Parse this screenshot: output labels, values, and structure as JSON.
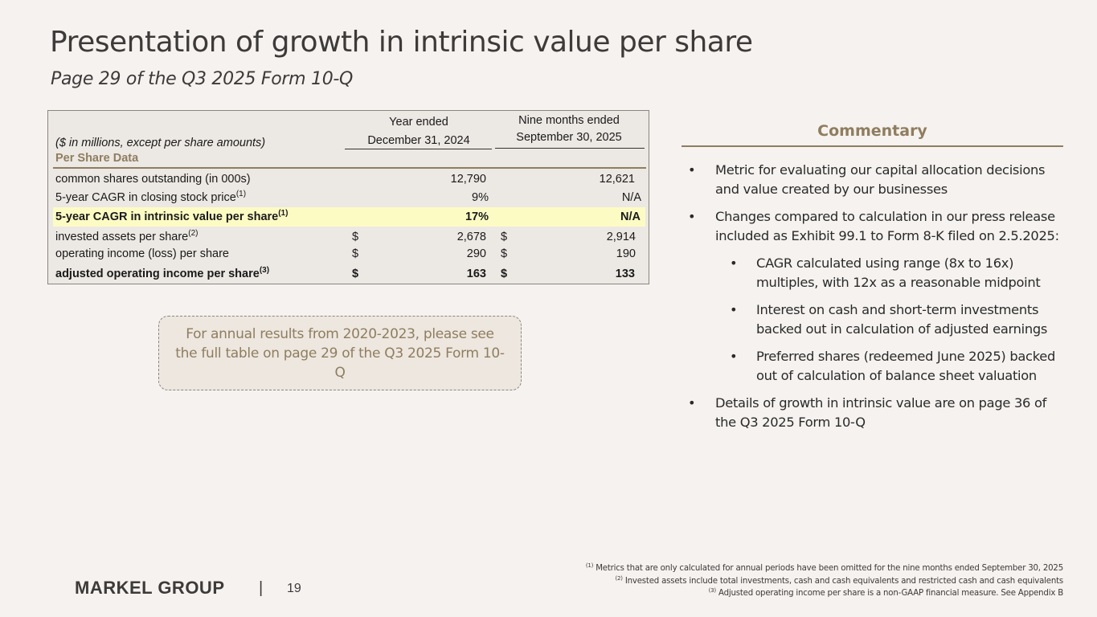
{
  "header": {
    "title": "Presentation of growth in intrinsic value per share",
    "subtitle": "Page 29 of the Q3 2025 Form 10-Q"
  },
  "table": {
    "units_note": "($ in millions, except per share amounts)",
    "col1": {
      "line1": "Year ended",
      "line2": "December 31, 2024"
    },
    "col2": {
      "line1": "Nine months ended",
      "line2": "September 30, 2025"
    },
    "section_label": "Per Share Data",
    "currency_symbol": "$",
    "rows": [
      {
        "label": "common shares outstanding (in 000s)",
        "sup": "",
        "v1": "12,790",
        "v2": "12,621"
      },
      {
        "label": "5-year CAGR in closing stock price",
        "sup": "(1)",
        "v1": "9%",
        "v2": "N/A"
      },
      {
        "label": "5-year CAGR in intrinsic value per share",
        "sup": "(1)",
        "v1": "17%",
        "v2": "N/A"
      },
      {
        "label": "invested assets per share",
        "sup": "(2)",
        "v1": "2,678",
        "v2": "2,914"
      },
      {
        "label": "operating income (loss) per share",
        "sup": "",
        "v1": "290",
        "v2": "190"
      },
      {
        "label": "adjusted operating income per share",
        "sup": "(3)",
        "v1": "163",
        "v2": "133"
      }
    ]
  },
  "note_box": {
    "text": "For annual results from 2020-2023, please see the full table on page 29 of the Q3 2025 Form 10-Q"
  },
  "commentary": {
    "title": "Commentary",
    "bullet1": "Metric for evaluating our capital allocation decisions and value created by our businesses",
    "bullet2": "Changes compared to calculation in our press release included as Exhibit 99.1 to Form 8-K filed on 2.5.2025:",
    "sub1": "CAGR calculated using range (8x to 16x) multiples, with 12x as a reasonable midpoint",
    "sub2": "Interest on cash and short-term investments backed out in calculation of adjusted earnings",
    "sub3": "Preferred shares (redeemed June 2025) backed out of calculation of balance sheet valuation",
    "bullet3": "Details of growth in intrinsic value are on page 36 of the Q3 2025 Form 10-Q"
  },
  "footnotes": {
    "f1_mark": "(1)",
    "f1": "Metrics that are only calculated for annual periods have been omitted for the nine months ended September 30, 2025",
    "f2_mark": "(2)",
    "f2": "Invested assets include total investments, cash and cash equivalents and restricted cash and cash equivalents",
    "f3_mark": "(3)",
    "f3": "Adjusted operating income per share is a non-GAAP financial measure. See Appendix B"
  },
  "footer": {
    "logo": "MARKEL GROUP",
    "separator": "|",
    "page_number": "19"
  },
  "colors": {
    "accent": "#8f7d5f",
    "highlight": "#fdfbc4",
    "background": "#f5f2ef"
  }
}
